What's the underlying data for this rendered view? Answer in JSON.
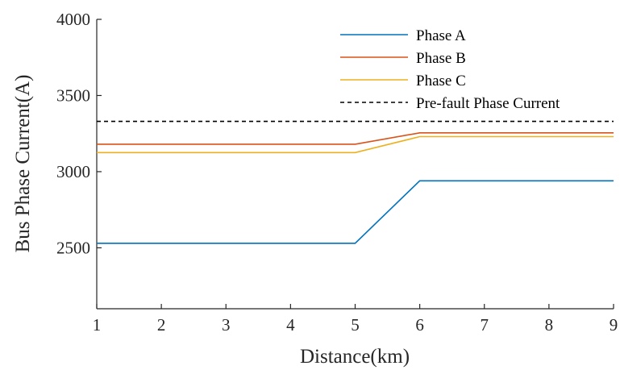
{
  "chart_data": {
    "type": "line",
    "title": "",
    "xlabel": "Distance(km)",
    "ylabel": "Bus Phase Current(A)",
    "xlim": [
      1,
      9
    ],
    "ylim": [
      2100,
      4000
    ],
    "x_ticks": [
      1,
      2,
      3,
      4,
      5,
      6,
      7,
      8,
      9
    ],
    "y_ticks": [
      2500,
      3000,
      3500,
      4000
    ],
    "x": [
      1,
      2,
      3,
      4,
      5,
      6,
      7,
      8,
      9
    ],
    "series": [
      {
        "name": "Phase A",
        "color": "#0072BD",
        "style": "solid",
        "values": [
          2530,
          2530,
          2530,
          2530,
          2530,
          2940,
          2940,
          2940,
          2940
        ]
      },
      {
        "name": "Phase B",
        "color": "#D95319",
        "style": "solid",
        "values": [
          3180,
          3180,
          3180,
          3180,
          3180,
          3255,
          3255,
          3255,
          3255
        ]
      },
      {
        "name": "Phase C",
        "color": "#EDB120",
        "style": "solid",
        "values": [
          3125,
          3125,
          3125,
          3125,
          3125,
          3230,
          3230,
          3230,
          3230
        ]
      },
      {
        "name": "Pre-fault Phase Current",
        "color": "#000000",
        "style": "dashed",
        "values": [
          3330,
          3330,
          3330,
          3330,
          3330,
          3330,
          3330,
          3330,
          3330
        ]
      }
    ],
    "legend_position": "top-right",
    "grid": false
  }
}
